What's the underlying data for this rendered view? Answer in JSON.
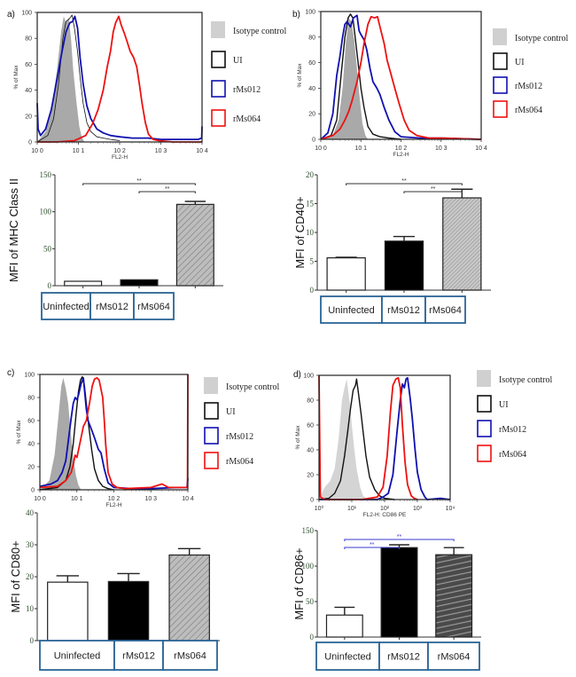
{
  "figure": {
    "legend_labels": [
      "Isotype control",
      "UI",
      "rMs012",
      "rMs064"
    ],
    "colors": {
      "isotype": "#a9a9a9",
      "isotype_light": "#d4d4d4",
      "ui": "#111111",
      "rMs012": "#1010b0",
      "rMs064": "#ee1111",
      "group_box": "#2a6496",
      "sig_blue": "#3a3ad0"
    }
  },
  "chart_data": [
    {
      "panel": "a)",
      "type": "line",
      "kind": "flow-cytometry-histogram",
      "xlabel": "FL2-H",
      "ylabel": "% of Max",
      "xscale": "log",
      "xlim": [
        1,
        10000
      ],
      "ylim": [
        0,
        100
      ],
      "xticks": [
        "10 0",
        "10 1",
        "10 2",
        "10 3",
        "10 4"
      ],
      "yticks": [
        0,
        20,
        40,
        60,
        80,
        100
      ],
      "series": [
        {
          "name": "Isotype control",
          "x": [
            1,
            1.6,
            2.2,
            3,
            3.8,
            4.4,
            5,
            5.8,
            6.6,
            7.5,
            9,
            10.5,
            12,
            14
          ],
          "y": [
            0,
            8,
            25,
            55,
            85,
            97,
            92,
            96,
            80,
            55,
            30,
            12,
            4,
            0
          ]
        },
        {
          "name": "UI",
          "x": [
            1,
            1.8,
            2.5,
            3.3,
            4.2,
            5,
            6,
            7,
            8,
            9.5,
            11,
            13,
            16,
            20,
            28,
            40,
            60,
            100
          ],
          "y": [
            0,
            5,
            18,
            45,
            80,
            93,
            95,
            98,
            88,
            70,
            50,
            30,
            15,
            8,
            4,
            3,
            2,
            1
          ]
        },
        {
          "name": "rMs012",
          "x": [
            1,
            1.05,
            1.2,
            1.6,
            2.2,
            3,
            4,
            5,
            6.2,
            7.2,
            8.2,
            9.5,
            11,
            13,
            16,
            20,
            28,
            40,
            60,
            100,
            200,
            500,
            1000,
            3000,
            8000,
            9800,
            10000
          ],
          "y": [
            30,
            10,
            5,
            10,
            25,
            48,
            70,
            85,
            92,
            93,
            97,
            88,
            65,
            45,
            28,
            18,
            10,
            7,
            5,
            4,
            3,
            3,
            2,
            2,
            2,
            3,
            12
          ]
        },
        {
          "name": "rMs064",
          "x": [
            1,
            3,
            8,
            15,
            22,
            30,
            40,
            50,
            60,
            70,
            80,
            95,
            110,
            130,
            150,
            180,
            220,
            260,
            300,
            350,
            420,
            500,
            650,
            900,
            2000,
            10000
          ],
          "y": [
            0,
            0,
            1,
            5,
            14,
            25,
            40,
            58,
            70,
            85,
            92,
            97,
            90,
            84,
            78,
            70,
            65,
            58,
            45,
            30,
            15,
            6,
            2,
            1,
            0,
            0
          ]
        }
      ]
    },
    {
      "panel": "a)",
      "type": "bar",
      "categories": [
        "Uninfected",
        "rMs012",
        "rMs064"
      ],
      "values": [
        6,
        8,
        110
      ],
      "errors": [
        0,
        0,
        4
      ],
      "ylabel": "MFI of MHC Class II",
      "ylim": [
        0,
        150
      ],
      "yticks": [
        0,
        50,
        100,
        150
      ],
      "fills": [
        "white",
        "black",
        "hatched-gray"
      ],
      "significance": [
        {
          "from": "Uninfected",
          "to": "rMs064",
          "label": "**"
        },
        {
          "from": "rMs012",
          "to": "rMs064",
          "label": "**"
        }
      ]
    },
    {
      "panel": "b)",
      "type": "line",
      "kind": "flow-cytometry-histogram",
      "xlabel": "FL2-H",
      "ylabel": "% of Max",
      "xscale": "log",
      "xlim": [
        1,
        10000
      ],
      "ylim": [
        0,
        100
      ],
      "xticks": [
        "10 0",
        "10 1",
        "10 2",
        "10 3",
        "10 4"
      ],
      "yticks": [
        0,
        20,
        40,
        60,
        80,
        100
      ],
      "series": [
        {
          "name": "Isotype control",
          "x": [
            1,
            2,
            2.8,
            3.5,
            4.2,
            5,
            5.8,
            6.8,
            8,
            9.5,
            11,
            13,
            15
          ],
          "y": [
            0,
            3,
            15,
            40,
            75,
            95,
            92,
            78,
            55,
            30,
            12,
            3,
            0
          ]
        },
        {
          "name": "UI",
          "x": [
            1,
            1.8,
            2.5,
            3.2,
            4,
            4.8,
            5.5,
            6.3,
            7.2,
            8.5,
            10,
            12,
            15,
            20,
            30,
            50,
            100
          ],
          "y": [
            0,
            3,
            15,
            50,
            80,
            95,
            98,
            95,
            80,
            60,
            40,
            25,
            10,
            4,
            2,
            1,
            0
          ]
        },
        {
          "name": "rMs012",
          "x": [
            1,
            1.5,
            2,
            2.5,
            3,
            3.5,
            4,
            4.5,
            5.5,
            6.5,
            8,
            9,
            10,
            12,
            14,
            17,
            20,
            25,
            30,
            38,
            50,
            70,
            100,
            300,
            1000,
            10000
          ],
          "y": [
            0,
            5,
            20,
            50,
            65,
            80,
            90,
            92,
            88,
            95,
            97,
            85,
            82,
            78,
            70,
            55,
            45,
            40,
            35,
            25,
            15,
            6,
            2,
            1,
            1,
            0
          ]
        },
        {
          "name": "rMs064",
          "x": [
            1,
            2,
            3,
            4,
            5,
            6,
            8,
            10,
            12,
            15,
            18,
            22,
            26,
            30,
            38,
            45,
            55,
            70,
            90,
            120,
            160,
            250,
            500,
            1000,
            10000
          ],
          "y": [
            0,
            3,
            8,
            15,
            22,
            30,
            45,
            60,
            75,
            90,
            96,
            95,
            96,
            88,
            75,
            62,
            52,
            40,
            28,
            15,
            7,
            3,
            1,
            1,
            0
          ]
        }
      ]
    },
    {
      "panel": "b)",
      "type": "bar",
      "categories": [
        "Uninfected",
        "rMs012",
        "rMs064"
      ],
      "values": [
        5.6,
        8.5,
        16
      ],
      "errors": [
        0.1,
        0.8,
        1.5
      ],
      "ylabel": "MFI of  CD40+",
      "ylim": [
        0,
        20
      ],
      "yticks": [
        0,
        5,
        10,
        15,
        20
      ],
      "fills": [
        "white",
        "black",
        "hatched-gray"
      ],
      "significance": [
        {
          "from": "Uninfected",
          "to": "rMs064",
          "label": "**"
        },
        {
          "from": "rMs012",
          "to": "rMs064",
          "label": "**"
        }
      ]
    },
    {
      "panel": "c)",
      "type": "line",
      "kind": "flow-cytometry-histogram",
      "xlabel": "FL2-H",
      "ylabel": "% of Max",
      "xscale": "log",
      "xlim": [
        1,
        10000
      ],
      "ylim": [
        0,
        100
      ],
      "xticks": [
        "10 0",
        "10 1",
        "10 2",
        "10 3",
        "10 4"
      ],
      "yticks": [
        0,
        20,
        40,
        60,
        80,
        100
      ],
      "series": [
        {
          "name": "Isotype control",
          "x": [
            1,
            1.8,
            2.5,
            3.2,
            3.8,
            4.3,
            5,
            5.8,
            6.8,
            8,
            9.5,
            11,
            13
          ],
          "y": [
            0,
            8,
            30,
            65,
            90,
            97,
            88,
            75,
            50,
            28,
            12,
            4,
            0
          ]
        },
        {
          "name": "UI",
          "x": [
            1,
            3,
            5,
            6.5,
            8,
            9.5,
            11,
            12.5,
            14,
            16,
            18,
            21,
            25,
            30,
            38,
            50,
            70,
            100
          ],
          "y": [
            0,
            2,
            8,
            20,
            40,
            65,
            85,
            95,
            98,
            90,
            75,
            55,
            35,
            18,
            8,
            3,
            1,
            0
          ]
        },
        {
          "name": "rMs012",
          "x": [
            1,
            2,
            3,
            4,
            5,
            6,
            7,
            8,
            9,
            10,
            11,
            13,
            15,
            18,
            20,
            25,
            30,
            38,
            45,
            55,
            70,
            100,
            300,
            1000,
            5000,
            9500,
            10000
          ],
          "y": [
            3,
            5,
            8,
            15,
            25,
            45,
            62,
            75,
            80,
            78,
            82,
            92,
            97,
            70,
            60,
            52,
            45,
            35,
            32,
            18,
            6,
            2,
            1,
            1,
            2,
            2,
            10
          ]
        },
        {
          "name": "rMs064",
          "x": [
            1,
            3,
            5,
            7,
            8,
            9,
            10,
            12,
            15,
            18,
            22,
            26,
            30,
            35,
            40,
            50,
            55,
            60,
            70,
            90,
            120,
            200,
            1000,
            2000,
            3000,
            9800,
            10000
          ],
          "y": [
            2,
            3,
            8,
            15,
            22,
            30,
            28,
            40,
            55,
            60,
            75,
            90,
            96,
            97,
            95,
            80,
            60,
            40,
            15,
            5,
            2,
            1,
            2,
            5,
            2,
            2,
            100
          ]
        }
      ]
    },
    {
      "panel": "c)",
      "type": "bar",
      "categories": [
        "Uninfected",
        "rMs012",
        "rMs064"
      ],
      "values": [
        18.3,
        18.5,
        26.8
      ],
      "errors": [
        2,
        2.5,
        2
      ],
      "ylabel": "MFI of  CD80+",
      "ylim": [
        0,
        40
      ],
      "yticks": [
        0,
        10,
        20,
        30,
        40
      ],
      "fills": [
        "white",
        "black",
        "hatched-gray"
      ],
      "significance": []
    },
    {
      "panel": "d)",
      "type": "line",
      "kind": "flow-cytometry-histogram",
      "xlabel": "FL2-H: CD86 PE",
      "ylabel": "% of Max",
      "xscale": "log",
      "xlim": [
        1,
        10000
      ],
      "ylim": [
        0,
        100
      ],
      "xticks": [
        "10⁰",
        "10¹",
        "10²",
        "10³",
        "10⁴"
      ],
      "yticks": [
        0,
        20,
        40,
        60,
        80,
        100
      ],
      "series": [
        {
          "name": "Isotype control",
          "x": [
            1,
            1.5,
            2.2,
            3,
            4,
            5,
            6,
            7,
            8,
            9,
            10,
            12,
            14,
            18,
            22,
            30
          ],
          "y": [
            0,
            10,
            15,
            25,
            50,
            80,
            90,
            97,
            85,
            75,
            60,
            40,
            25,
            10,
            3,
            0
          ]
        },
        {
          "name": "UI",
          "x": [
            1,
            2,
            3,
            4.5,
            6,
            7.5,
            9,
            11,
            13,
            14,
            16,
            19,
            22,
            27,
            35,
            50,
            70,
            100,
            200
          ],
          "y": [
            0,
            1,
            5,
            15,
            35,
            55,
            72,
            88,
            92,
            97,
            85,
            70,
            55,
            35,
            18,
            8,
            3,
            1,
            0
          ]
        },
        {
          "name": "rMs012",
          "x": [
            1,
            60,
            90,
            130,
            180,
            240,
            300,
            350,
            400,
            450,
            500,
            600,
            700,
            850,
            1000,
            1300,
            1700,
            2000,
            5000,
            10000
          ],
          "y": [
            0,
            0,
            2,
            5,
            20,
            55,
            80,
            93,
            90,
            97,
            98,
            82,
            65,
            40,
            22,
            8,
            2,
            0,
            1,
            0
          ]
        },
        {
          "name": "rMs064",
          "x": [
            1,
            1.1,
            1.5,
            20,
            60,
            90,
            120,
            150,
            180,
            220,
            260,
            300,
            350,
            420,
            500,
            650,
            800,
            1000
          ],
          "y": [
            100,
            2,
            0,
            0,
            2,
            10,
            35,
            70,
            92,
            97,
            98,
            90,
            60,
            30,
            12,
            3,
            1,
            0
          ]
        }
      ]
    },
    {
      "panel": "d)",
      "type": "bar",
      "categories": [
        "Uninfected",
        "rMs012",
        "rMs064"
      ],
      "values": [
        31,
        126,
        116
      ],
      "errors": [
        11,
        4,
        10
      ],
      "ylabel": "MFI of  CD86+",
      "ylim": [
        0,
        150
      ],
      "yticks": [
        0,
        50,
        100,
        150
      ],
      "fills": [
        "white",
        "black",
        "striped-gray"
      ],
      "significance": [
        {
          "from": "Uninfected",
          "to": "rMs064",
          "label": "**"
        },
        {
          "from": "Uninfected",
          "to": "rMs012",
          "label": "**"
        }
      ]
    }
  ]
}
